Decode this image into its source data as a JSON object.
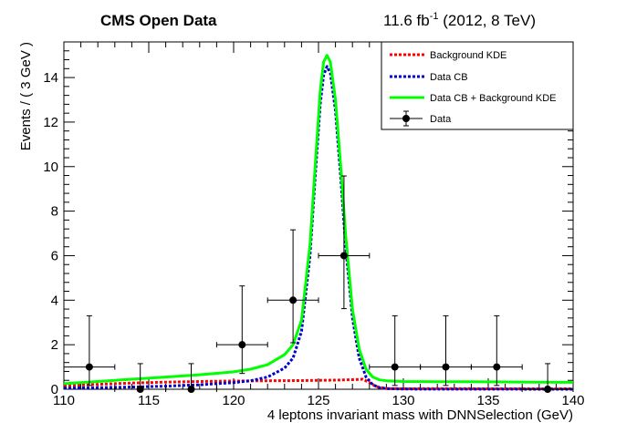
{
  "header": {
    "experiment": "CMS Open Data",
    "lumi_value": "11.6 fb",
    "lumi_exp": "-1",
    "lumi_tail": " (2012, 8 TeV)"
  },
  "chart_data": {
    "type": "line",
    "xlabel": "4 leptons invariant mass with DNNSelection (GeV)",
    "ylabel": "Events / ( 3 GeV )",
    "xlim": [
      110,
      140
    ],
    "ylim": [
      0,
      15.6
    ],
    "x_ticks": [
      "110",
      "115",
      "120",
      "125",
      "130",
      "135",
      "140"
    ],
    "y_ticks": [
      "0",
      "2",
      "4",
      "6",
      "8",
      "10",
      "12",
      "14"
    ],
    "legend_position": "top-right",
    "legend": [
      {
        "label": "Background KDE",
        "style": "dotted",
        "color": "#ff0000"
      },
      {
        "label": "Data CB",
        "style": "dotted",
        "color": "#0000cc"
      },
      {
        "label": "Data CB + Background KDE",
        "style": "solid",
        "color": "#00ff00"
      },
      {
        "label": "Data",
        "style": "marker",
        "color": "#000000"
      }
    ],
    "points": [
      {
        "x": 111.5,
        "y": 1,
        "xerr": 1.5,
        "ylo": 0.83,
        "yhi": 2.3
      },
      {
        "x": 114.5,
        "y": 0,
        "xerr": 1.5,
        "ylo": 0,
        "yhi": 1.15
      },
      {
        "x": 117.5,
        "y": 0,
        "xerr": 1.5,
        "ylo": 0,
        "yhi": 1.15
      },
      {
        "x": 120.5,
        "y": 2,
        "xerr": 1.5,
        "ylo": 1.29,
        "yhi": 2.64
      },
      {
        "x": 123.5,
        "y": 4,
        "xerr": 1.5,
        "ylo": 1.91,
        "yhi": 3.16
      },
      {
        "x": 126.5,
        "y": 6,
        "xerr": 1.5,
        "ylo": 2.38,
        "yhi": 3.58
      },
      {
        "x": 129.5,
        "y": 1,
        "xerr": 1.5,
        "ylo": 0.83,
        "yhi": 2.3
      },
      {
        "x": 132.5,
        "y": 1,
        "xerr": 1.5,
        "ylo": 0.83,
        "yhi": 2.3
      },
      {
        "x": 135.5,
        "y": 1,
        "xerr": 1.5,
        "ylo": 0.83,
        "yhi": 2.3
      },
      {
        "x": 138.5,
        "y": 0,
        "xerr": 1.5,
        "ylo": 0,
        "yhi": 1.15
      }
    ],
    "series": [
      {
        "name": "Background KDE",
        "color": "#ff0000",
        "x": [
          110,
          112,
          114,
          116,
          118,
          120,
          122,
          124,
          125,
          126,
          127,
          127.6,
          128,
          128.4,
          129,
          130,
          132,
          135,
          138,
          140
        ],
        "y": [
          0.15,
          0.22,
          0.28,
          0.32,
          0.35,
          0.37,
          0.38,
          0.39,
          0.4,
          0.41,
          0.43,
          0.45,
          0.3,
          0.12,
          0.03,
          0.02,
          0.03,
          0.02,
          0.02,
          0.02
        ]
      },
      {
        "name": "Data CB",
        "color": "#0000cc",
        "x": [
          110,
          112,
          114,
          116,
          118,
          120,
          121,
          122,
          123,
          123.5,
          124,
          124.5,
          124.8,
          125.1,
          125.3,
          125.5,
          125.7,
          126,
          126.3,
          126.6,
          127,
          127.4,
          127.8,
          128.2,
          128.6,
          129,
          130,
          140
        ],
        "y": [
          0.05,
          0.07,
          0.1,
          0.14,
          0.2,
          0.3,
          0.38,
          0.55,
          0.95,
          1.4,
          2.6,
          6.0,
          9.5,
          12.8,
          14.1,
          14.5,
          14.2,
          12.5,
          9.6,
          6.4,
          3.2,
          1.4,
          0.55,
          0.2,
          0.07,
          0.03,
          0.01,
          0.0
        ]
      },
      {
        "name": "Data CB + Background KDE",
        "color": "#00ff00",
        "x": [
          110,
          112,
          114,
          116,
          118,
          120,
          121,
          122,
          123,
          123.5,
          124,
          124.5,
          124.8,
          125.1,
          125.3,
          125.5,
          125.7,
          126,
          126.3,
          126.6,
          127,
          127.4,
          127.8,
          128.2,
          128.6,
          129,
          130,
          132,
          135,
          138,
          140
        ],
        "y": [
          0.25,
          0.35,
          0.45,
          0.55,
          0.65,
          0.78,
          0.9,
          1.1,
          1.55,
          2.0,
          3.1,
          6.5,
          10.0,
          13.4,
          14.7,
          15.0,
          14.7,
          13.0,
          10.1,
          6.9,
          3.6,
          1.8,
          0.9,
          0.55,
          0.42,
          0.38,
          0.35,
          0.34,
          0.33,
          0.32,
          0.31
        ]
      }
    ]
  }
}
